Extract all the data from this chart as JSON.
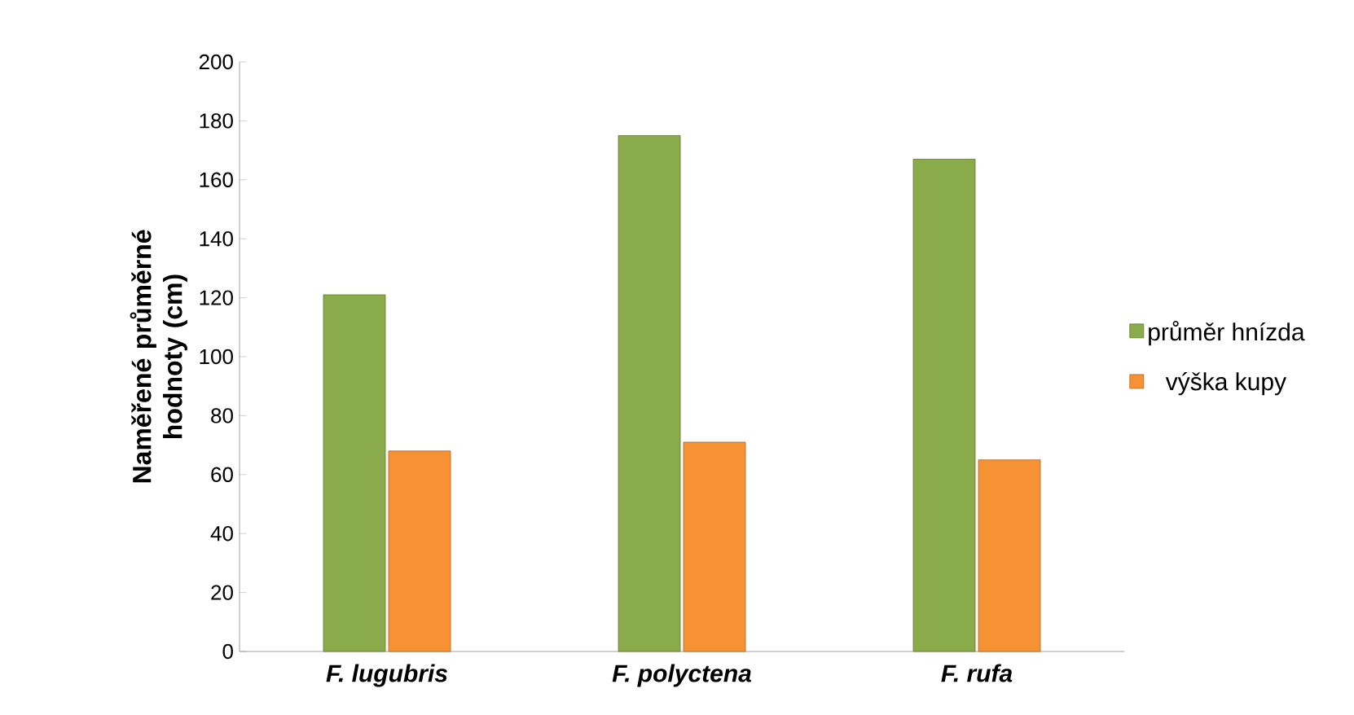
{
  "chart_data": {
    "type": "bar",
    "ylabel": "Naměřené průměrné hodnoty (cm)",
    "categories": [
      "F. lugubris",
      "F. polyctena",
      "F. rufa"
    ],
    "series": [
      {
        "name": "průměr hnízda",
        "color": "#8aab4a",
        "values": [
          121,
          175,
          167
        ]
      },
      {
        "name": "výška kupy",
        "color": "#f79234",
        "values": [
          68,
          71,
          65
        ]
      }
    ],
    "ylim": [
      0,
      200
    ],
    "yticks": [
      0,
      20,
      40,
      60,
      80,
      100,
      120,
      140,
      160,
      180,
      200
    ],
    "grid": false,
    "legend": "right"
  }
}
